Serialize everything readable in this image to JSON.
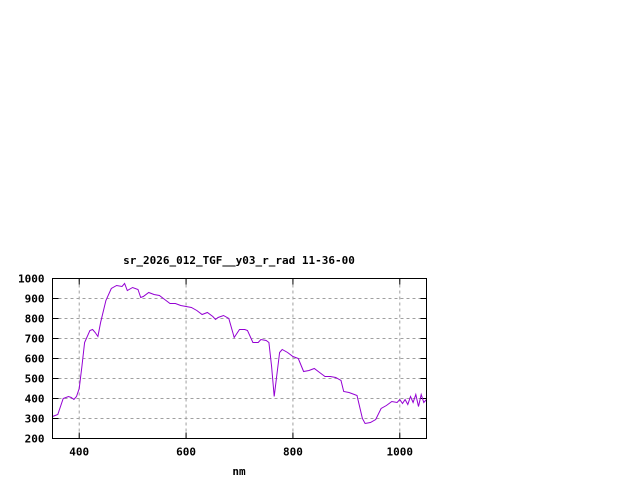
{
  "chart_data": {
    "type": "line",
    "title": "sr_2026_012_TGF__y03_r_rad 11-36-00",
    "xlabel": "nm",
    "ylabel": "",
    "xlim": [
      350,
      1050
    ],
    "ylim": [
      200,
      1000
    ],
    "xticks": [
      400,
      600,
      800,
      1000
    ],
    "yticks": [
      200,
      300,
      400,
      500,
      600,
      700,
      800,
      900,
      1000
    ],
    "grid": true,
    "line_color": "#9400d3",
    "series": [
      {
        "x": [
          350,
          360,
          370,
          380,
          385,
          390,
          395,
          400,
          405,
          410,
          420,
          425,
          430,
          435,
          440,
          450,
          460,
          470,
          480,
          485,
          490,
          500,
          510,
          515,
          520,
          530,
          540,
          550,
          560,
          570,
          580,
          590,
          600,
          610,
          620,
          630,
          640,
          650,
          655,
          660,
          670,
          680,
          690,
          700,
          710,
          715,
          725,
          735,
          740,
          750,
          755,
          760,
          765,
          770,
          775,
          780,
          790,
          800,
          810,
          820,
          830,
          840,
          850,
          860,
          870,
          880,
          890,
          895,
          905,
          915,
          920,
          930,
          935,
          945,
          955,
          965,
          975,
          985,
          995,
          1000,
          1005,
          1010,
          1015,
          1020,
          1025,
          1030,
          1035,
          1040,
          1045,
          1050
        ],
        "y": [
          310,
          320,
          400,
          410,
          405,
          395,
          410,
          450,
          560,
          680,
          740,
          745,
          730,
          710,
          780,
          890,
          950,
          965,
          960,
          975,
          940,
          955,
          945,
          905,
          910,
          930,
          920,
          915,
          895,
          875,
          875,
          865,
          860,
          855,
          840,
          820,
          830,
          810,
          795,
          805,
          815,
          800,
          705,
          745,
          745,
          740,
          680,
          680,
          695,
          690,
          680,
          560,
          410,
          520,
          630,
          645,
          630,
          610,
          600,
          535,
          540,
          550,
          530,
          510,
          510,
          505,
          490,
          435,
          430,
          420,
          415,
          300,
          275,
          280,
          295,
          350,
          365,
          385,
          380,
          395,
          375,
          395,
          370,
          410,
          380,
          420,
          360,
          420,
          380,
          395
        ]
      }
    ]
  }
}
